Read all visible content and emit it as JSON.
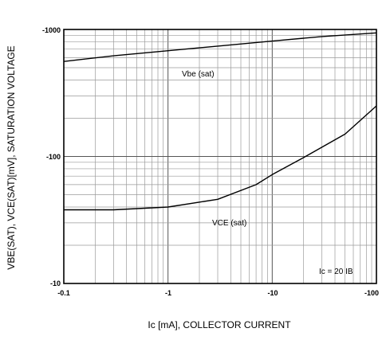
{
  "chart_data": {
    "type": "line",
    "x_scale": "log",
    "y_scale": "log",
    "xlim": [
      -0.1,
      -100
    ],
    "ylim": [
      -10,
      -1000
    ],
    "grid": true,
    "x_ticks": [
      "-0.1",
      "-1",
      "-10",
      "-100"
    ],
    "y_ticks": [
      "-1000",
      "-100",
      "-10"
    ],
    "xlabel": "Ic [mA], COLLECTOR CURRENT",
    "ylabel": "VBE(SAT), VCE(SAT)[mV], SATURATION VOLTAGE",
    "series": [
      {
        "name": "VBE (sat)",
        "label": "Vbe (sat)",
        "x": [
          -0.1,
          -0.3,
          -1,
          -3,
          -10,
          -30,
          -100
        ],
        "y": [
          -560,
          -620,
          -680,
          -740,
          -810,
          -880,
          -940
        ]
      },
      {
        "name": "VCE (sat)",
        "label": "VCE (sat)",
        "x": [
          -0.1,
          -0.3,
          -1,
          -3,
          -7,
          -10,
          -20,
          -50,
          -100
        ],
        "y": [
          -38,
          -38,
          -40,
          -46,
          -60,
          -72,
          -98,
          -150,
          -250
        ]
      }
    ],
    "annotations": [
      "Ic = 20 IB"
    ],
    "colors": {
      "line": "#000000",
      "grid": "#9a9a9a",
      "frame": "#000000"
    }
  }
}
